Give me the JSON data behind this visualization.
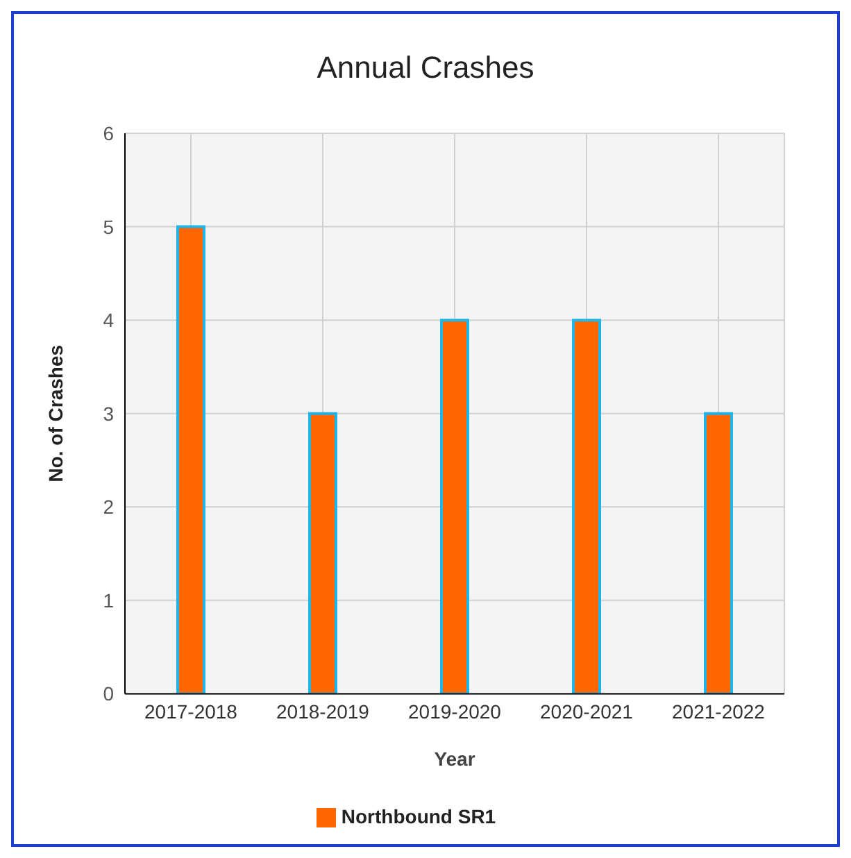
{
  "chart_data": {
    "type": "bar",
    "title": "Annual Crashes",
    "xlabel": "Year",
    "ylabel": "No. of Crashes",
    "categories": [
      "2017-2018",
      "2018-2019",
      "2019-2020",
      "2020-2021",
      "2021-2022"
    ],
    "series": [
      {
        "name": "Northbound SR1",
        "color": "#ff6600",
        "values": [
          5,
          3,
          4,
          4,
          3
        ]
      }
    ],
    "ylim": [
      0,
      6
    ],
    "yticks": [
      0,
      1,
      2,
      3,
      4,
      5,
      6
    ],
    "grid": true,
    "legend": "bottom"
  }
}
